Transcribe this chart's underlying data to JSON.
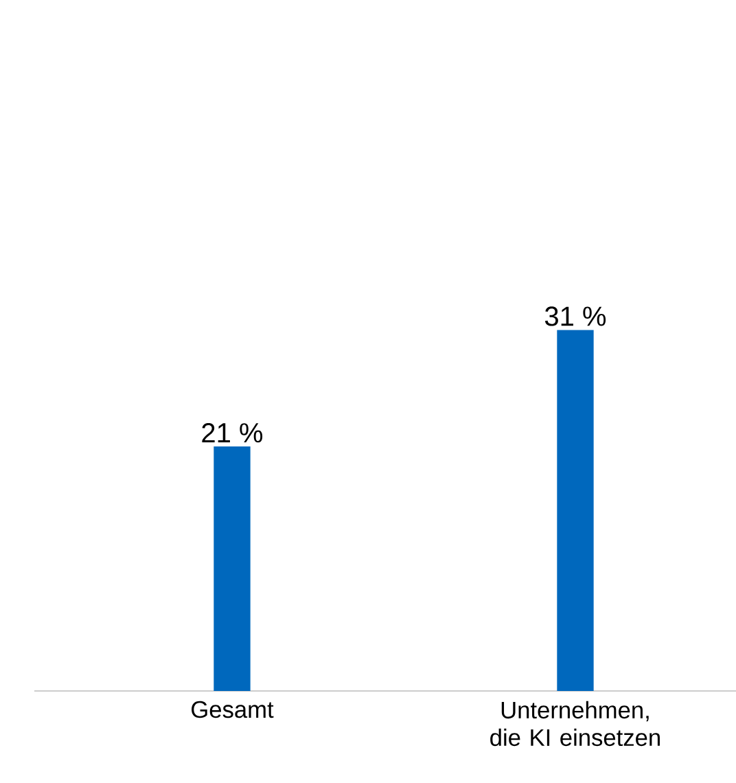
{
  "chart_data": {
    "type": "bar",
    "categories": [
      "Gesamt",
      "Unternehmen, die KI einsetzen"
    ],
    "values": [
      21,
      31
    ],
    "color": "#0068bd",
    "value_labels": [
      "21 %",
      "31 %"
    ]
  }
}
